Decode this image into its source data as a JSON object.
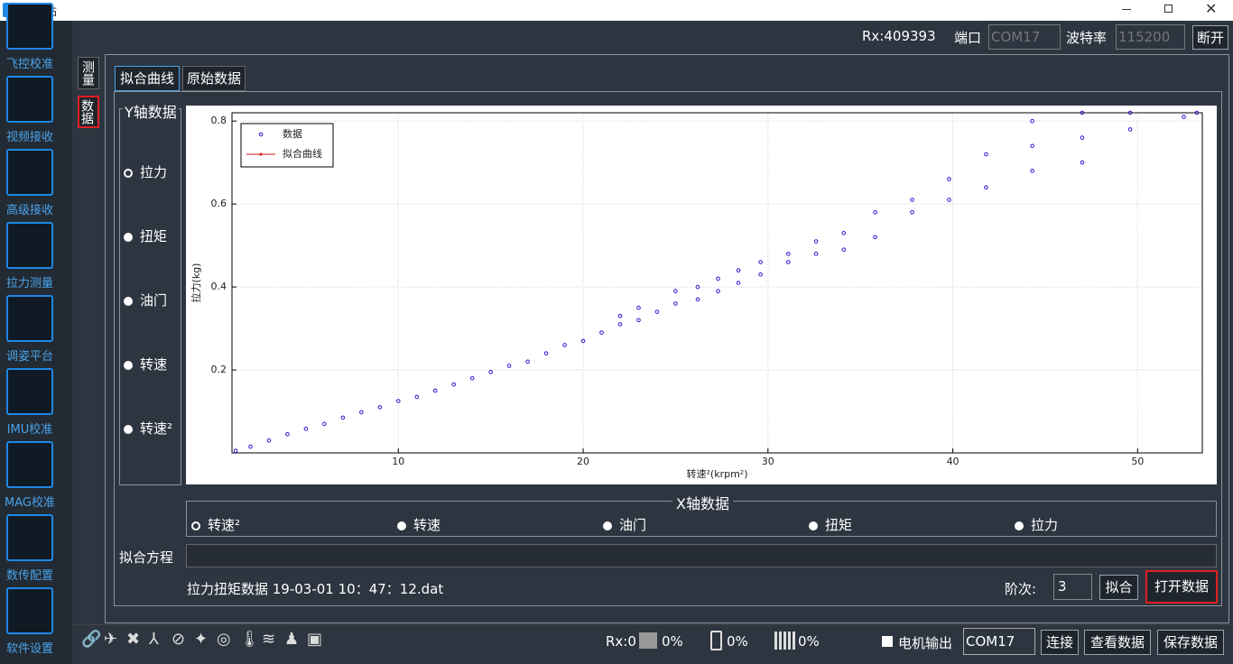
{
  "window": {
    "title": "地面站"
  },
  "sidebar": {
    "items": [
      "飞控校准",
      "视频接收",
      "高级接收",
      "拉力测量",
      "调姿平台",
      "IMU校准",
      "MAG校准",
      "数传配置",
      "软件设置"
    ]
  },
  "topbar": {
    "rx": "Rx:409393",
    "port_label": "端口",
    "port": "COM17",
    "baud_label": "波特率",
    "baud": "115200",
    "disconnect": "断开"
  },
  "side_tabs": [
    "测量",
    "数据"
  ],
  "tabs": [
    "拟合曲线",
    "原始数据"
  ],
  "y_group": {
    "title": "Y轴数据",
    "options": [
      "拉力",
      "扭矩",
      "油门",
      "转速",
      "转速²"
    ]
  },
  "x_group": {
    "title": "X轴数据",
    "options": [
      "转速²",
      "转速",
      "油门",
      "扭矩",
      "拉力"
    ]
  },
  "fit_equation_label": "拟合方程",
  "file_name": "拉力扭矩数据 19-03-01 10：47：12.dat",
  "order_label": "阶次:",
  "order_value": "3",
  "fit_button": "拟合",
  "open_button": "打开数据",
  "status": {
    "rx": "Rx:0",
    "cpu": "0%",
    "battery": "0%",
    "signal": "0%",
    "motor_output": "电机输出",
    "com": "COM17",
    "buttons": [
      "连接",
      "查看数据",
      "保存数据"
    ]
  },
  "chart_data": {
    "type": "scatter",
    "x_label": "转速²(krpm²)",
    "y_label": "拉力(kg)",
    "xlim": [
      1,
      53.5
    ],
    "ylim": [
      0,
      0.82
    ],
    "xticks": [
      10,
      20,
      30,
      40,
      50
    ],
    "yticks": [
      0.2,
      0.4,
      0.6,
      0.8
    ],
    "grid": true,
    "legend": "upper left",
    "series": [
      {
        "name": "数据",
        "color": "#3a10d0",
        "x": [
          1.2,
          2,
          3,
          4,
          5,
          6,
          7,
          8,
          9,
          10,
          11,
          12,
          13,
          14,
          15,
          16,
          17,
          18,
          19,
          20,
          21,
          22,
          22,
          23,
          23,
          24,
          25,
          25,
          26.2,
          26.2,
          27.3,
          27.3,
          28.4,
          28.4,
          29.6,
          29.6,
          31.1,
          31.1,
          32.6,
          32.6,
          34.1,
          34.1,
          35.8,
          35.8,
          37.8,
          37.8,
          39.8,
          39.8,
          41.8,
          41.8,
          44.3,
          44.3,
          44.3,
          47,
          47,
          47,
          49.6,
          49.6,
          52.5,
          53.2
        ],
        "values": [
          0.005,
          0.015,
          0.03,
          0.045,
          0.058,
          0.07,
          0.085,
          0.098,
          0.11,
          0.125,
          0.135,
          0.15,
          0.165,
          0.18,
          0.195,
          0.21,
          0.22,
          0.24,
          0.26,
          0.27,
          0.29,
          0.31,
          0.33,
          0.32,
          0.35,
          0.34,
          0.36,
          0.39,
          0.37,
          0.4,
          0.39,
          0.42,
          0.41,
          0.44,
          0.43,
          0.46,
          0.46,
          0.48,
          0.48,
          0.51,
          0.49,
          0.53,
          0.52,
          0.58,
          0.58,
          0.61,
          0.61,
          0.66,
          0.64,
          0.72,
          0.68,
          0.74,
          0.8,
          0.7,
          0.76,
          0.82,
          0.78,
          0.82,
          0.81,
          0.82
        ]
      },
      {
        "name": "拟合曲线",
        "color": "#d01010"
      }
    ]
  }
}
